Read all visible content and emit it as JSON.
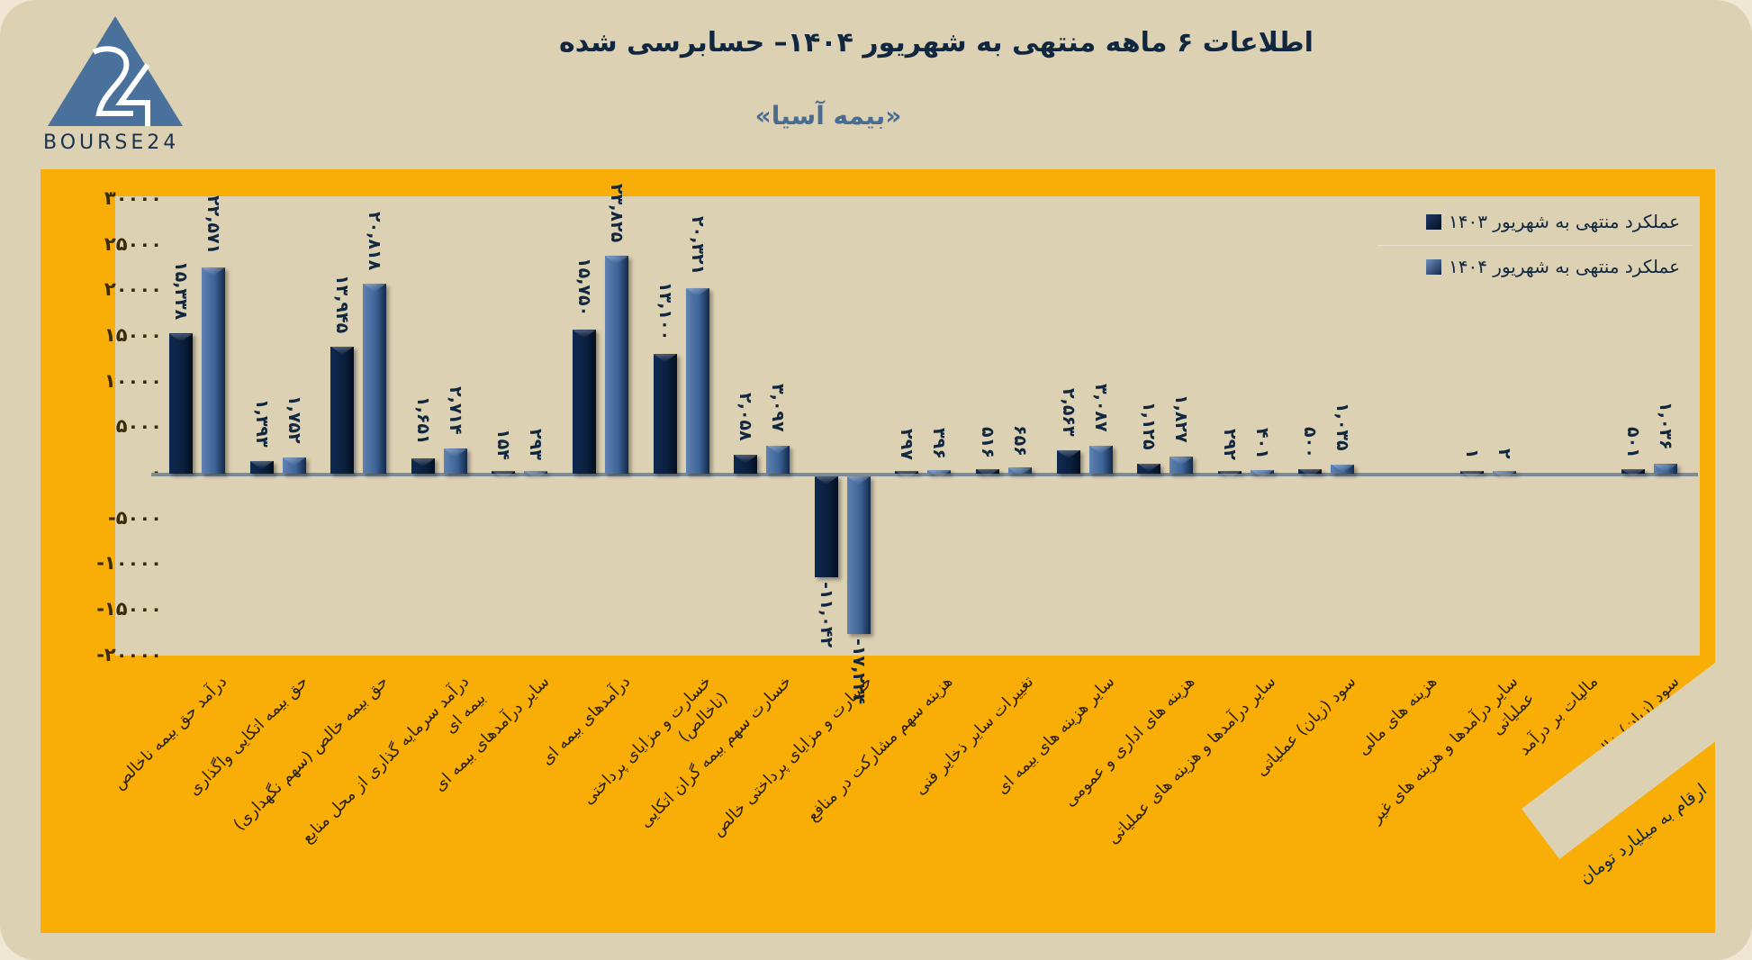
{
  "header": {
    "title": "اطلاعات ۶ ماهه منتهی به شهریور ۱۴۰۴– حسابرسی شده",
    "subtitle": "«بیمه آسیا»",
    "logo_text": "BOURSE24"
  },
  "colors": {
    "background": "#DDD1B3",
    "panel": "#F8AE06",
    "series_1403": "#0B1F3D",
    "series_1404": "#3D6497",
    "text_dark": "#10273F",
    "subtitle": "#4A6C93"
  },
  "legend": {
    "items": [
      {
        "label": "عملکرد منتهی به شهریور ۱۴۰۳",
        "series": "1403"
      },
      {
        "label": "عملکرد منتهی به شهریور ۱۴۰۴",
        "series": "1404"
      }
    ]
  },
  "y_axis": {
    "ticks": [
      "۳۰۰۰۰",
      "۲۵۰۰۰",
      "۲۰۰۰۰",
      "۱۵۰۰۰",
      "۱۰۰۰۰",
      "۵۰۰۰",
      "۰",
      "-۵۰۰۰",
      "-۱۰۰۰۰",
      "-۱۵۰۰۰",
      "-۲۰۰۰۰"
    ]
  },
  "unit_note": "ارقام به میلیارد تومان",
  "chart_data": {
    "type": "bar",
    "title": "اطلاعات ۶ ماهه منتهی به شهریور ۱۴۰۴– حسابرسی شده",
    "subtitle": "«بیمه آسیا»",
    "xlabel": "",
    "ylabel": "ارقام به میلیارد تومان",
    "ylim": [
      -20000,
      30000
    ],
    "yticks": [
      30000,
      25000,
      20000,
      15000,
      10000,
      5000,
      0,
      -5000,
      -10000,
      -15000,
      -20000
    ],
    "grid": false,
    "legend_position": "top-right",
    "categories": [
      "درآمد حق بیمه ناخالص",
      "حق بیمه اتکایی واگذاری",
      "حق بیمه خالص (سهم نگهداری)",
      "درآمد سرمایه گذاری از محل منابع بیمه ای",
      "سایر درآمدهای بیمه ای",
      "درآمدهای بیمه ای",
      "خسارت و مزایای پرداختی (ناخالص)",
      "خسارت سهم بیمه گران اتکایی",
      "خسارت و مزایای پرداختی خالص",
      "هزینه سهم مشارکت در منافع",
      "تغییرات سایر ذخایر فنی",
      "سایر هزینه های بیمه ای",
      "هزینه های اداری و عمومی",
      "سایر درآمدها و هزینه های عملیاتی",
      "سود (زیان) عملیاتی",
      "هزینه های مالی",
      "سایر درآمدها و هزینه های غیر عملیاتی",
      "مالیات بر درآمد",
      "سود (زیان) خالص"
    ],
    "series": [
      {
        "name": "عملکرد منتهی به شهریور ۱۴۰۳",
        "values": [
          15338,
          1393,
          13945,
          1651,
          154,
          15750,
          13100,
          2058,
          -11042,
          297,
          516,
          2563,
          1125,
          292,
          500,
          null,
          1,
          null,
          501
        ],
        "labels": [
          "۱۵,۳۳۸",
          "۱,۳۹۳",
          "۱۳,۹۴۵",
          "۱,۶۵۱",
          "۱۵۴",
          "۱۵,۷۵۰",
          "۱۳,۱۰۰",
          "۲,۰۵۸",
          "-۱۱,۰۴۲",
          "۲۹۷",
          "۵۱۶",
          "۲,۵۶۳",
          "۱,۱۲۵",
          "۲۹۲",
          "۵۰۰",
          "",
          "۱",
          "",
          "۵۰۱"
        ]
      },
      {
        "name": "عملکرد منتهی به شهریور ۱۴۰۴",
        "values": [
          22571,
          1752,
          20818,
          2714,
          293,
          23825,
          20321,
          3097,
          -17224,
          396,
          656,
          3087,
          1827,
          401,
          1035,
          null,
          2,
          null,
          1036
        ],
        "labels": [
          "۲۲,۵۷۱",
          "۱,۷۵۲",
          "۲۰,۸۱۸",
          "۲,۷۱۴",
          "۲۹۳",
          "۲۳,۸۲۵",
          "۲۰,۳۲۱",
          "۳,۰۹۷",
          "-۱۷,۲۲۴",
          "۳۹۶",
          "۶۵۶",
          "۳,۰۸۷",
          "۱,۸۲۷",
          "۴۰۱",
          "۱,۰۳۵",
          "",
          "۲",
          "",
          "۱,۰۳۶"
        ]
      }
    ]
  }
}
